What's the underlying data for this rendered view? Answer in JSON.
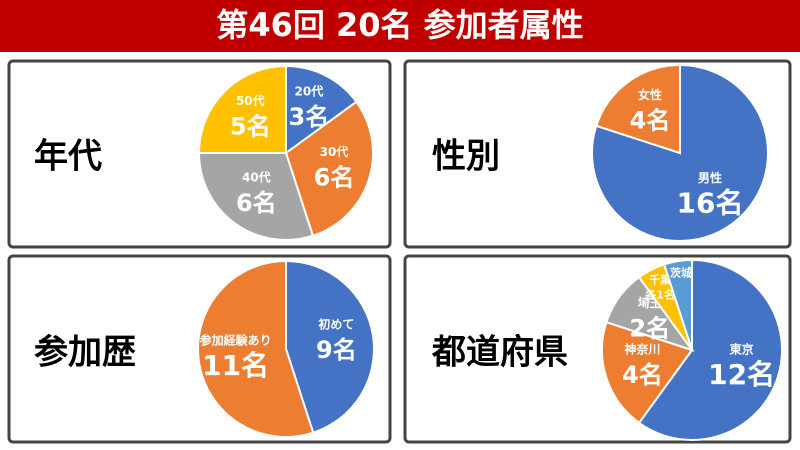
{
  "title": "第46回 20名 参加者属性",
  "chart_data": [
    {
      "type": "pie",
      "title": "年代",
      "categories": [
        "20代",
        "30代",
        "40代",
        "50代"
      ],
      "values": [
        3,
        6,
        6,
        5
      ],
      "value_labels": [
        "3名",
        "6名",
        "6名",
        "5名"
      ],
      "colors": [
        "#4472c4",
        "#ed7d31",
        "#a5a5a5",
        "#ffc000"
      ]
    },
    {
      "type": "pie",
      "title": "性別",
      "categories": [
        "男性",
        "女性"
      ],
      "values": [
        16,
        4
      ],
      "value_labels": [
        "16名",
        "4名"
      ],
      "colors": [
        "#4472c4",
        "#ed7d31"
      ]
    },
    {
      "type": "pie",
      "title": "参加歴",
      "categories": [
        "初めて",
        "参加経験あり"
      ],
      "values": [
        9,
        11
      ],
      "value_labels": [
        "9名",
        "11名"
      ],
      "colors": [
        "#4472c4",
        "#ed7d31"
      ]
    },
    {
      "type": "pie",
      "title": "都道府県",
      "categories": [
        "東京",
        "神奈川",
        "埼玉",
        "千葉",
        "茨城"
      ],
      "values": [
        12,
        4,
        2,
        1,
        1
      ],
      "value_labels": [
        "12名",
        "4名",
        "2名",
        "各1名",
        null
      ],
      "colors": [
        "#4472c4",
        "#ed7d31",
        "#a5a5a5",
        "#ffc000",
        "#5b9bd5"
      ]
    }
  ]
}
